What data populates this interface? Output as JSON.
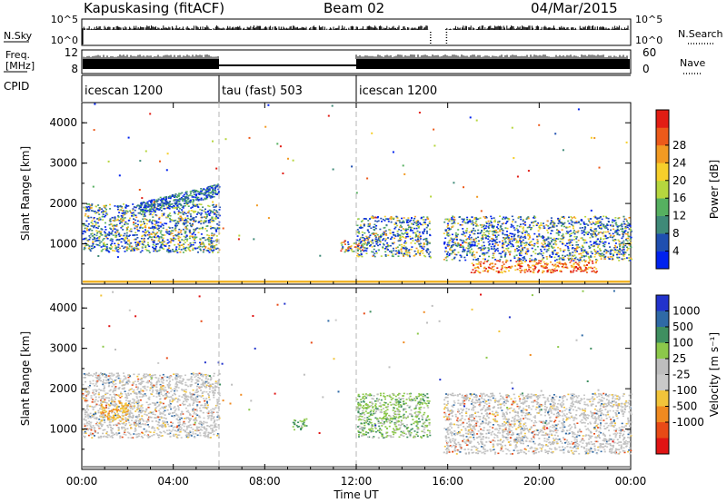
{
  "header": {
    "station": "Kapuskasing (fitACF)",
    "beam": "Beam 02",
    "date": "04/Mar/2015"
  },
  "panels": {
    "nsky_label": "N.Sky",
    "nsearch_label": "N.Search",
    "freq_label_line1": "Freq.",
    "freq_label_line2": "[MHz]",
    "nave_label": "Nave",
    "cpid_label": "CPID",
    "nsky_ticks": [
      "10^5",
      "10^0"
    ],
    "nsearch_ticks": [
      "10^5",
      "10^0"
    ],
    "freq_ticks": [
      "12",
      "8"
    ],
    "nave_ticks": [
      "60",
      "0"
    ]
  },
  "cpid_segments": [
    {
      "label": "icescan 1200",
      "start_hour": 0,
      "end_hour": 6
    },
    {
      "label": "tau (fast) 503",
      "start_hour": 6,
      "end_hour": 12
    },
    {
      "label": "icescan 1200",
      "start_hour": 12,
      "end_hour": 24
    }
  ],
  "x_axis": {
    "label": "Time UT",
    "ticks": [
      "00:00",
      "04:00",
      "08:00",
      "12:00",
      "16:00",
      "20:00",
      "00:00"
    ],
    "range_hours": [
      0,
      24
    ]
  },
  "chart_data": [
    {
      "type": "heatmap",
      "title": "",
      "xlabel": "Time UT",
      "ylabel": "Slant Range [km]",
      "ylim": [
        0,
        4500
      ],
      "y_ticks": [
        "1000",
        "2000",
        "3000",
        "4000"
      ],
      "colorbar": {
        "label": "Power [dB]",
        "ticks": [
          "4",
          "8",
          "12",
          "16",
          "20",
          "24",
          "28"
        ],
        "range": [
          0,
          30
        ],
        "colors": [
          "#0022ee",
          "#1f4fb0",
          "#3f8a78",
          "#56b060",
          "#b6d63e",
          "#f6cf2b",
          "#f29a22",
          "#ec5a1a",
          "#e21d14"
        ]
      },
      "echo_regions": [
        {
          "t0": 0.0,
          "t1": 6.0,
          "r0": 800,
          "r1": 2000,
          "kind": "band"
        },
        {
          "t0": 2.5,
          "t1": 6.0,
          "r0": 1800,
          "r1": 2450,
          "kind": "arc"
        },
        {
          "t0": 11.3,
          "t1": 12.3,
          "r0": 800,
          "r1": 1100,
          "kind": "patch"
        },
        {
          "t0": 12.0,
          "t1": 15.2,
          "r0": 700,
          "r1": 1700,
          "kind": "band"
        },
        {
          "t0": 15.8,
          "t1": 24.0,
          "r0": 600,
          "r1": 1700,
          "kind": "band"
        },
        {
          "t0": 17.0,
          "t1": 22.5,
          "r0": 300,
          "r1": 600,
          "kind": "strong"
        }
      ]
    },
    {
      "type": "heatmap",
      "title": "",
      "xlabel": "Time UT",
      "ylabel": "Slant Range [km]",
      "ylim": [
        0,
        4500
      ],
      "y_ticks": [
        "1000",
        "2000",
        "3000",
        "4000"
      ],
      "colorbar": {
        "label": "Velocity [m s⁻¹]",
        "ticks": [
          "1000",
          "500",
          "100",
          "25",
          "-25",
          "-100",
          "-500",
          "-1000"
        ],
        "range": [
          1000,
          -1000
        ],
        "colors": [
          "#2233cc",
          "#2f6aa6",
          "#3f8f60",
          "#8cc84a",
          "#bdbdbd",
          "#c9c9c9",
          "#f2c43a",
          "#f08a20",
          "#e84a16",
          "#e01414"
        ]
      },
      "echo_regions": [
        {
          "t0": 0.0,
          "t1": 6.0,
          "r0": 800,
          "r1": 2400,
          "kind": "grey"
        },
        {
          "t0": 0.8,
          "t1": 2.0,
          "r0": 1200,
          "r1": 1700,
          "kind": "orange"
        },
        {
          "t0": 9.2,
          "t1": 9.8,
          "r0": 1000,
          "r1": 1300,
          "kind": "green"
        },
        {
          "t0": 12.0,
          "t1": 15.2,
          "r0": 800,
          "r1": 1900,
          "kind": "greenish"
        },
        {
          "t0": 15.8,
          "t1": 24.0,
          "r0": 400,
          "r1": 1900,
          "kind": "grey"
        }
      ]
    }
  ],
  "colors": {
    "axis": "#000000",
    "divider": "#b4b4b4",
    "ground_scatter": "#9a9a9a"
  }
}
